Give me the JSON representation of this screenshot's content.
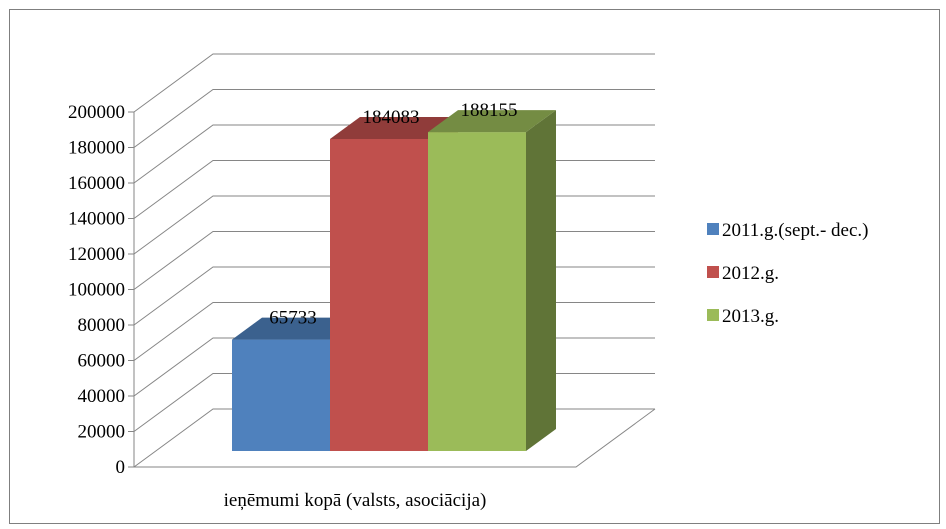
{
  "chart_data": {
    "type": "bar",
    "title": "",
    "xlabel": "",
    "ylabel": "",
    "categories": [
      "ieņēmumi kopā (valsts, asociācija)"
    ],
    "series": [
      {
        "name": "2011.g.(sept.- dec.)",
        "values": [
          65733
        ],
        "color": "#4f81bd",
        "label": "65733"
      },
      {
        "name": "2012.g.",
        "values": [
          184083
        ],
        "color": "#c0504d",
        "label": "184083"
      },
      {
        "name": "2013.g.",
        "values": [
          188155
        ],
        "color": "#9bbb59",
        "label": "188155"
      }
    ],
    "ylim": [
      0,
      200000
    ],
    "yticks": [
      "0",
      "20000",
      "40000",
      "60000",
      "80000",
      "100000",
      "120000",
      "140000",
      "160000",
      "180000",
      "200000"
    ],
    "grid": true,
    "style": "3d-clustered-column",
    "legend_position": "right"
  }
}
